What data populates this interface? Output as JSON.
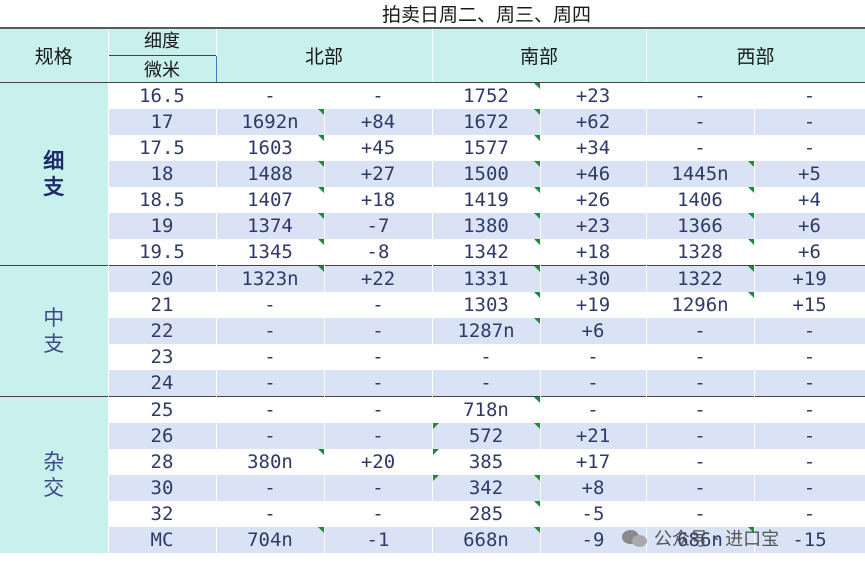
{
  "title": "拍卖日周二、周三、周四",
  "headers": {
    "spec": "规格",
    "fineness_top": "细度",
    "fineness_bottom": "微米",
    "regions": [
      "北部",
      "南部",
      "西部"
    ]
  },
  "groups": [
    {
      "label": "细支",
      "rows": [
        {
          "micron": "16.5",
          "n": [
            "-",
            "-"
          ],
          "s": [
            "1752",
            "+23"
          ],
          "w": [
            "-",
            "-"
          ]
        },
        {
          "micron": "17",
          "n": [
            "1692n",
            "+84"
          ],
          "s": [
            "1672",
            "+62"
          ],
          "w": [
            "-",
            "-"
          ]
        },
        {
          "micron": "17.5",
          "n": [
            "1603",
            "+45"
          ],
          "s": [
            "1577",
            "+34"
          ],
          "w": [
            "-",
            "-"
          ]
        },
        {
          "micron": "18",
          "n": [
            "1488",
            "+27"
          ],
          "s": [
            "1500",
            "+46"
          ],
          "w": [
            "1445n",
            "+5"
          ]
        },
        {
          "micron": "18.5",
          "n": [
            "1407",
            "+18"
          ],
          "s": [
            "1419",
            "+26"
          ],
          "w": [
            "1406",
            "+4"
          ]
        },
        {
          "micron": "19",
          "n": [
            "1374",
            "-7"
          ],
          "s": [
            "1380",
            "+23"
          ],
          "w": [
            "1366",
            "+6"
          ]
        },
        {
          "micron": "19.5",
          "n": [
            "1345",
            "-8"
          ],
          "s": [
            "1342",
            "+18"
          ],
          "w": [
            "1328",
            "+6"
          ]
        }
      ]
    },
    {
      "label": "中支",
      "rows": [
        {
          "micron": "20",
          "n": [
            "1323n",
            "+22"
          ],
          "s": [
            "1331",
            "+30"
          ],
          "w": [
            "1322",
            "+19"
          ]
        },
        {
          "micron": "21",
          "n": [
            "-",
            "-"
          ],
          "s": [
            "1303",
            "+19"
          ],
          "w": [
            "1296n",
            "+15"
          ]
        },
        {
          "micron": "22",
          "n": [
            "-",
            "-"
          ],
          "s": [
            "1287n",
            "+6"
          ],
          "w": [
            "-",
            "-"
          ]
        },
        {
          "micron": "23",
          "n": [
            "-",
            "-"
          ],
          "s": [
            "-",
            "-"
          ],
          "w": [
            "-",
            "-"
          ]
        },
        {
          "micron": "24",
          "n": [
            "-",
            "-"
          ],
          "s": [
            "-",
            "-"
          ],
          "w": [
            "-",
            "-"
          ]
        }
      ]
    },
    {
      "label": "杂交",
      "rows": [
        {
          "micron": "25",
          "n": [
            "-",
            "-"
          ],
          "s": [
            "718n",
            "-"
          ],
          "w": [
            "-",
            "-"
          ]
        },
        {
          "micron": "26",
          "n": [
            "-",
            "-"
          ],
          "s": [
            "572",
            "+21"
          ],
          "w": [
            "-",
            "-"
          ]
        },
        {
          "micron": "28",
          "n": [
            "380n",
            "+20"
          ],
          "s": [
            "385",
            "+17"
          ],
          "w": [
            "-",
            "-"
          ]
        },
        {
          "micron": "30",
          "n": [
            "-",
            "-"
          ],
          "s": [
            "342",
            "+8"
          ],
          "w": [
            "-",
            "-"
          ]
        },
        {
          "micron": "32",
          "n": [
            "-",
            "-"
          ],
          "s": [
            "285",
            "-5"
          ],
          "w": [
            "-",
            "-"
          ]
        },
        {
          "micron": "MC",
          "n": [
            "704n",
            "-1"
          ],
          "s": [
            "668n",
            "-9"
          ],
          "w": [
            "686n",
            "-15"
          ]
        }
      ]
    }
  ],
  "watermark": "公众号 · 进口宝",
  "colors": {
    "header_bg": "#c8f0ec",
    "band_blue": "#d9e3f5",
    "text": "#2f3a66",
    "flag": "#1d8a3a"
  }
}
